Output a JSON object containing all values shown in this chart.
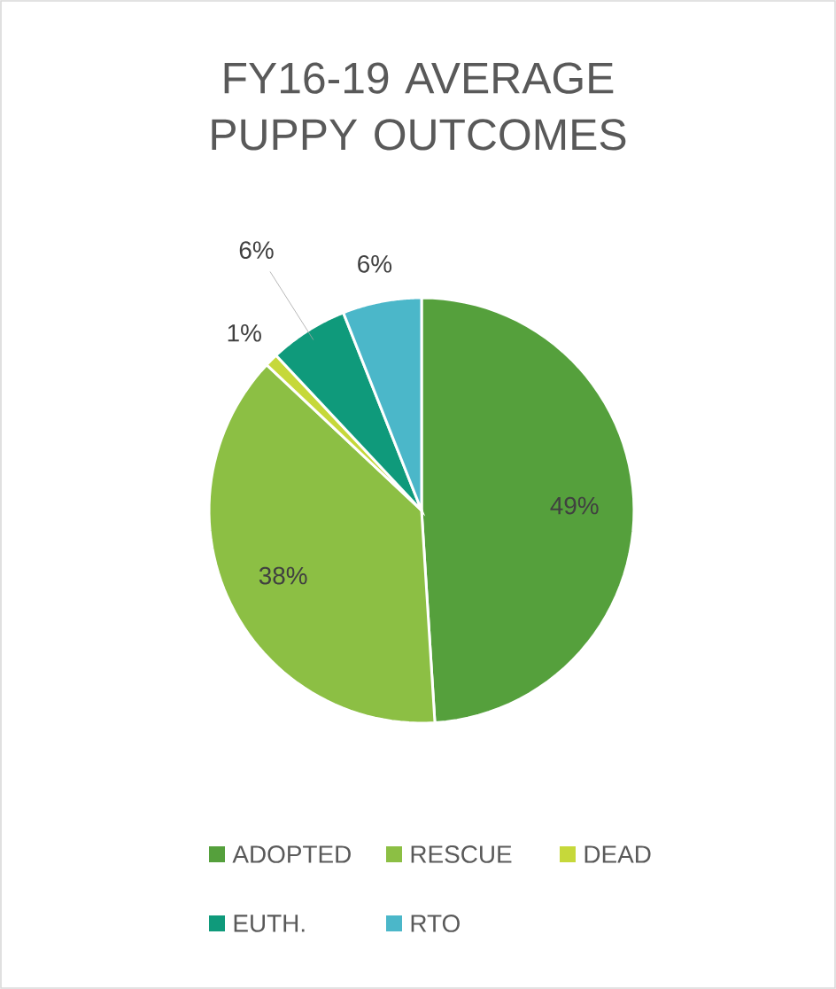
{
  "chart_data": {
    "type": "pie",
    "title": "FY16-19 AVERAGE PUPPY OUTCOMES",
    "categories": [
      "ADOPTED",
      "RESCUE",
      "DEAD",
      "EUTH.",
      "RTO"
    ],
    "values": [
      49,
      38,
      1,
      6,
      6
    ],
    "colors": [
      "#55a03c",
      "#8cbf44",
      "#c6d83a",
      "#0f9a7b",
      "#4bb7c9"
    ],
    "value_labels": [
      "49%",
      "38%",
      "1%",
      "6%",
      "6%"
    ],
    "legend": "bottom"
  }
}
